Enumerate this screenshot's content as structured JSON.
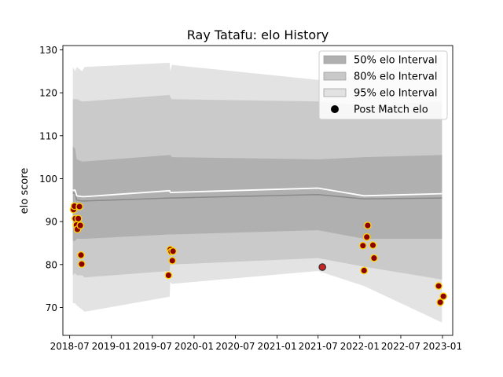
{
  "chart_data": {
    "type": "line",
    "title": "Ray Tatafu: elo History",
    "xlabel": "",
    "ylabel": "elo score",
    "ylim": [
      63.5,
      131
    ],
    "xlim": [
      "2018-06-01",
      "2023-02-15"
    ],
    "x_ticks": [
      "2018-07",
      "2019-01",
      "2019-07",
      "2020-01",
      "2020-07",
      "2021-01",
      "2021-07",
      "2022-01",
      "2022-07",
      "2023-01"
    ],
    "y_ticks": [
      70,
      80,
      90,
      100,
      110,
      120,
      130
    ],
    "legend_position": "top-right",
    "legend": [
      {
        "label": "50% elo Interval",
        "kind": "band",
        "color": "#b0b0b0"
      },
      {
        "label": "80% elo Interval",
        "kind": "band",
        "color": "#c8c8c8"
      },
      {
        "label": "95% elo Interval",
        "kind": "band",
        "color": "#e2e2e2"
      },
      {
        "label": "Post Match elo",
        "kind": "marker",
        "color": "#000000"
      }
    ],
    "colors": {
      "band50": "#b0b0b0",
      "band80": "#cacaca",
      "band95": "#e3e3e3",
      "mean_line": "#ffffff",
      "median_line": "#8a8a8a",
      "marker_fill": "#8b0000",
      "marker_edge": "#ffd700",
      "highlight_fill": "#cc2222",
      "highlight_edge": "#333333"
    },
    "bands": {
      "x": [
        "2018-07-15",
        "2018-07-25",
        "2018-08-01",
        "2018-08-25",
        "2018-09-05",
        "2019-09-15",
        "2019-09-18",
        "2019-09-25",
        "2021-07-01",
        "2022-01-20",
        "2022-12-30"
      ],
      "p95": [
        [
          71,
          126
        ],
        [
          71,
          125
        ],
        [
          70.5,
          126
        ],
        [
          69.5,
          125
        ],
        [
          69,
          126
        ],
        [
          72.5,
          127
        ],
        [
          76,
          125
        ],
        [
          75.5,
          126.5
        ],
        [
          78.5,
          123
        ],
        [
          75,
          124
        ],
        [
          66.5,
          128.5
        ]
      ],
      "p80": [
        [
          77.5,
          118.5
        ],
        [
          78,
          118.5
        ],
        [
          77.5,
          118.5
        ],
        [
          77.5,
          118
        ],
        [
          77,
          118
        ],
        [
          78.5,
          119.5
        ],
        [
          80,
          119
        ],
        [
          80,
          118.5
        ],
        [
          81.5,
          118
        ],
        [
          79.5,
          117
        ],
        [
          76.5,
          118
        ]
      ],
      "p50": [
        [
          85.5,
          107.5
        ],
        [
          85.5,
          107
        ],
        [
          86,
          104.5
        ],
        [
          86,
          104
        ],
        [
          86,
          104
        ],
        [
          87,
          105.5
        ],
        [
          87,
          105.5
        ],
        [
          87,
          105
        ],
        [
          88,
          104.5
        ],
        [
          86,
          105
        ],
        [
          86,
          105.5
        ]
      ],
      "mean": [
        97.3,
        97.3,
        96,
        95.8,
        95.8,
        97.2,
        96.8,
        96.8,
        97.8,
        96,
        96.5
      ],
      "median": [
        96.7,
        96.5,
        95,
        94.8,
        94.8,
        95.5,
        95.5,
        95.5,
        96.3,
        95.3,
        95.5
      ]
    },
    "points": [
      {
        "x": "2018-07-18",
        "y": 92.8
      },
      {
        "x": "2018-07-22",
        "y": 93.6
      },
      {
        "x": "2018-07-26",
        "y": 90.7
      },
      {
        "x": "2018-07-31",
        "y": 89.2
      },
      {
        "x": "2018-08-04",
        "y": 88.2
      },
      {
        "x": "2018-08-08",
        "y": 90.7
      },
      {
        "x": "2018-08-13",
        "y": 93.5
      },
      {
        "x": "2018-08-17",
        "y": 89.1
      },
      {
        "x": "2018-08-20",
        "y": 82.2
      },
      {
        "x": "2018-08-23",
        "y": 80.1
      },
      {
        "x": "2019-09-10",
        "y": 77.5
      },
      {
        "x": "2019-09-18",
        "y": 83.5
      },
      {
        "x": "2019-09-22",
        "y": 83
      },
      {
        "x": "2019-09-30",
        "y": 83.1
      },
      {
        "x": "2019-09-27",
        "y": 80.9
      },
      {
        "x": "2021-07-20",
        "y": 79.4,
        "highlight": true
      },
      {
        "x": "2022-01-15",
        "y": 84.4
      },
      {
        "x": "2022-01-20",
        "y": 78.6
      },
      {
        "x": "2022-02-01",
        "y": 86.4
      },
      {
        "x": "2022-02-05",
        "y": 89.1
      },
      {
        "x": "2022-02-28",
        "y": 84.5
      },
      {
        "x": "2022-03-05",
        "y": 81.5
      },
      {
        "x": "2022-12-15",
        "y": 75
      },
      {
        "x": "2022-12-22",
        "y": 71.2
      },
      {
        "x": "2023-01-05",
        "y": 72.6
      }
    ]
  }
}
